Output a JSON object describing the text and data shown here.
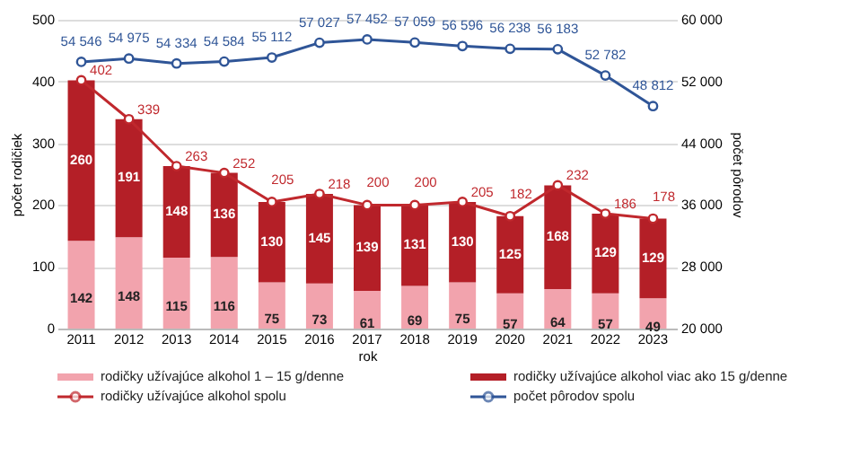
{
  "chart_data": {
    "type": "bar",
    "stacked": true,
    "xlabel": "rok",
    "ylabel": "počet rodičiek",
    "y2label": "počet pôrodov",
    "categories": [
      "2011",
      "2012",
      "2013",
      "2014",
      "2015",
      "2016",
      "2017",
      "2018",
      "2019",
      "2020",
      "2021",
      "2022",
      "2023"
    ],
    "series": [
      {
        "name": "rodičky užívajúce alkohol 1 – 15 g/denne",
        "color": "#f2a3ad",
        "values": [
          142,
          148,
          115,
          116,
          75,
          73,
          61,
          69,
          75,
          57,
          64,
          57,
          49
        ]
      },
      {
        "name": "rodičky užívajúce alkohol viac ako 15 g/denne",
        "color": "#b41f27",
        "values": [
          260,
          191,
          148,
          136,
          130,
          145,
          139,
          131,
          130,
          125,
          168,
          129,
          129
        ]
      },
      {
        "name": "rodičky užívajúce alkohol spolu",
        "type": "line",
        "color": "#c0282d",
        "values": [
          402,
          339,
          263,
          252,
          205,
          218,
          200,
          200,
          205,
          182,
          232,
          186,
          178
        ]
      },
      {
        "name": "počet pôrodov spolu",
        "type": "line",
        "axis": "y2",
        "color": "#2f5597",
        "values": [
          54546,
          54975,
          54334,
          54584,
          55112,
          57027,
          57452,
          57059,
          56596,
          56238,
          56183,
          52782,
          48812
        ]
      }
    ],
    "ylim": [
      0,
      500
    ],
    "yticks": [
      0,
      100,
      200,
      300,
      400,
      500
    ],
    "y2lim": [
      20000,
      60000
    ],
    "y2ticks": [
      {
        "value": 20000,
        "label": "20 000"
      },
      {
        "value": 28000,
        "label": "28 000"
      },
      {
        "value": 36000,
        "label": "36 000"
      },
      {
        "value": 44000,
        "label": "44 000"
      },
      {
        "value": 52000,
        "label": "52 000"
      },
      {
        "value": 60000,
        "label": "60 000"
      }
    ],
    "grid": "y",
    "marker": "circle",
    "data_labels": true,
    "legend": "bottom"
  }
}
